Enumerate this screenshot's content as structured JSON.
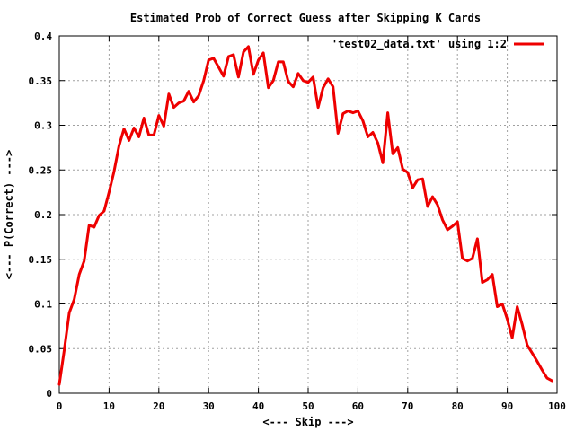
{
  "chart_data": {
    "type": "line",
    "title": "Estimated Prob of Correct Guess after Skipping K Cards",
    "xlabel": "<--- Skip --->",
    "ylabel": "<--- P(Correct) --->",
    "xlim": [
      0,
      100
    ],
    "ylim": [
      0,
      0.4
    ],
    "grid": true,
    "legend_position": "top-right",
    "x_ticks": [
      "0",
      "10",
      "20",
      "30",
      "40",
      "50",
      "60",
      "70",
      "80",
      "90",
      "100"
    ],
    "y_ticks": [
      "0",
      "0.05",
      "0.1",
      "0.15",
      "0.2",
      "0.25",
      "0.3",
      "0.35",
      "0.4"
    ],
    "series": [
      {
        "name": "'test02_data.txt' using 1:2",
        "color": "#ee0000",
        "x": [
          0,
          1,
          2,
          3,
          4,
          5,
          6,
          7,
          8,
          9,
          10,
          11,
          12,
          13,
          14,
          15,
          16,
          17,
          18,
          19,
          20,
          21,
          22,
          23,
          24,
          25,
          26,
          27,
          28,
          29,
          30,
          31,
          32,
          33,
          34,
          35,
          36,
          37,
          38,
          39,
          40,
          41,
          42,
          43,
          44,
          45,
          46,
          47,
          48,
          49,
          50,
          51,
          52,
          53,
          54,
          55,
          56,
          57,
          58,
          59,
          60,
          61,
          62,
          63,
          64,
          65,
          66,
          67,
          68,
          69,
          70,
          71,
          72,
          73,
          74,
          75,
          76,
          77,
          78,
          79,
          80,
          81,
          82,
          83,
          84,
          85,
          86,
          87,
          88,
          89,
          90,
          91,
          92,
          93,
          94,
          95,
          96,
          97,
          98,
          99
        ],
        "y": [
          0.01,
          0.048,
          0.09,
          0.105,
          0.133,
          0.148,
          0.188,
          0.186,
          0.199,
          0.204,
          0.225,
          0.248,
          0.277,
          0.296,
          0.283,
          0.297,
          0.287,
          0.308,
          0.289,
          0.289,
          0.311,
          0.299,
          0.335,
          0.32,
          0.325,
          0.327,
          0.338,
          0.326,
          0.333,
          0.35,
          0.373,
          0.375,
          0.365,
          0.355,
          0.377,
          0.379,
          0.354,
          0.382,
          0.388,
          0.357,
          0.373,
          0.381,
          0.342,
          0.35,
          0.371,
          0.371,
          0.349,
          0.343,
          0.358,
          0.35,
          0.348,
          0.354,
          0.32,
          0.342,
          0.352,
          0.343,
          0.291,
          0.313,
          0.316,
          0.314,
          0.316,
          0.305,
          0.287,
          0.292,
          0.28,
          0.258,
          0.314,
          0.268,
          0.275,
          0.251,
          0.247,
          0.23,
          0.239,
          0.24,
          0.209,
          0.22,
          0.211,
          0.194,
          0.183,
          0.187,
          0.192,
          0.151,
          0.148,
          0.151,
          0.173,
          0.124,
          0.127,
          0.133,
          0.097,
          0.1,
          0.083,
          0.062,
          0.097,
          0.077,
          0.054,
          0.045,
          0.036,
          0.026,
          0.017,
          0.014
        ]
      }
    ]
  }
}
